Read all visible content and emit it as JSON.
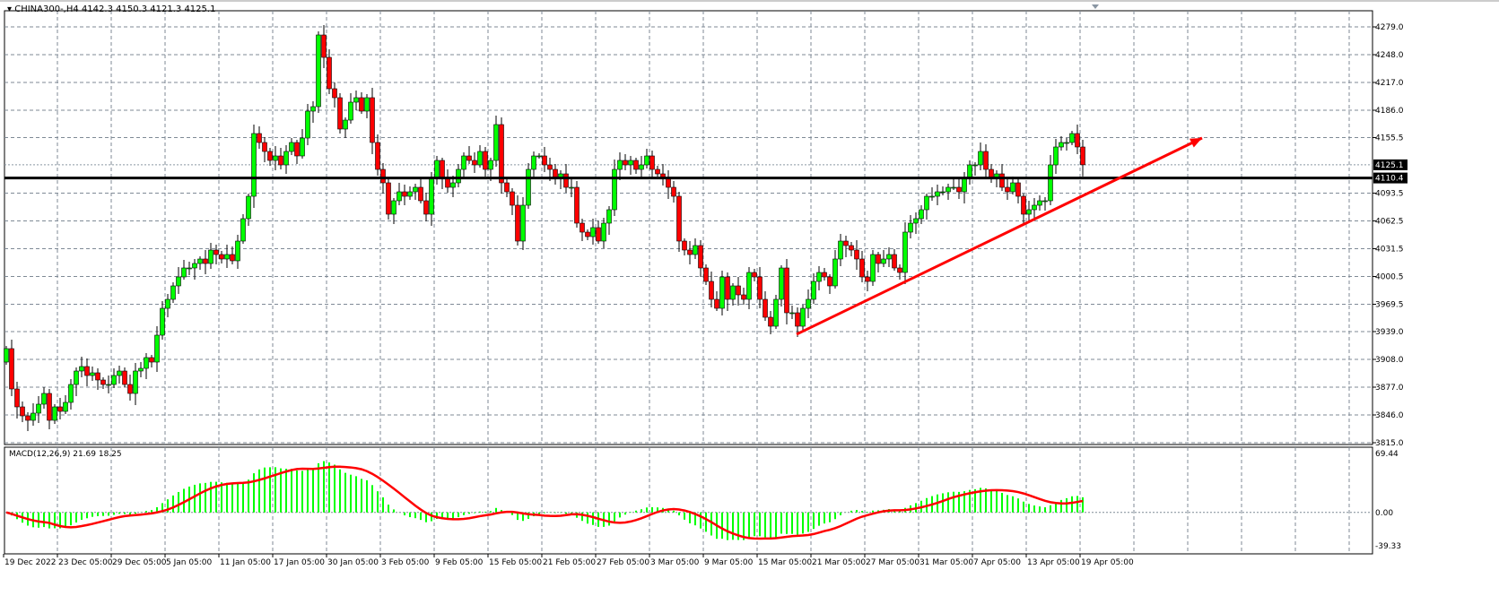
{
  "header": {
    "symbol": "CHINA300-,H4",
    "ohlc": "4142.3 4150.3 4121.3 4125.1"
  },
  "indicator": {
    "label": "MACD(12,26,9) 21.69 18.25"
  },
  "colors": {
    "bull": "#00ff00",
    "bear": "#ff0000",
    "macd_hist": "#00ff00",
    "signal": "#ff0000",
    "trend_arrow": "#ff0000",
    "level_line": "#000000",
    "grid": "#7f8a96"
  },
  "chart_data": {
    "type": "candlestick",
    "timeframe": "H4",
    "price_axis": {
      "ticks": [
        "4279.0",
        "4248.0",
        "4217.0",
        "4186.0",
        "4155.5",
        "4093.5",
        "4062.5",
        "4031.5",
        "4000.5",
        "3969.5",
        "3939.0",
        "3908.0",
        "3877.0",
        "3846.0",
        "3815.0"
      ],
      "ylim": [
        3815.0,
        4291.0
      ]
    },
    "current_price": {
      "value": 4125.1,
      "label": "4125.1"
    },
    "horizontal_level": {
      "value": 4110.4,
      "label": "4110.4"
    },
    "trend_arrow": {
      "from": {
        "candle": 147,
        "price": 3936
      },
      "to": {
        "candle": 222,
        "price": 4155
      }
    },
    "time_axis": {
      "labels": [
        "19 Dec 2022",
        "23 Dec 05:00",
        "29 Dec 05:00",
        "5 Jan 05:00",
        "11 Jan 05:00",
        "17 Jan 05:00",
        "30 Jan 05:00",
        "3 Feb 05:00",
        "9 Feb 05:00",
        "15 Feb 05:00",
        "21 Feb 05:00",
        "27 Feb 05:00",
        "3 Mar 05:00",
        "9 Mar 05:00",
        "15 Mar 05:00",
        "21 Mar 05:00",
        "27 Mar 05:00",
        "31 Mar 05:00",
        "7 Apr 05:00",
        "13 Apr 05:00",
        "19 Apr 05:00"
      ],
      "candles_per_label": 10
    },
    "first_open": 3905,
    "closes": [
      3920,
      3875,
      3855,
      3845,
      3840,
      3848,
      3858,
      3870,
      3840,
      3855,
      3850,
      3860,
      3880,
      3895,
      3900,
      3890,
      3893,
      3885,
      3880,
      3880,
      3890,
      3895,
      3880,
      3870,
      3895,
      3898,
      3910,
      3905,
      3935,
      3965,
      3975,
      3990,
      4000,
      4010,
      4010,
      4015,
      4020,
      4015,
      4030,
      4025,
      4020,
      4025,
      4018,
      4040,
      4065,
      4090,
      4160,
      4150,
      4140,
      4130,
      4135,
      4125,
      4140,
      4150,
      4135,
      4155,
      4185,
      4190,
      4270,
      4245,
      4210,
      4200,
      4165,
      4175,
      4195,
      4200,
      4185,
      4200,
      4150,
      4120,
      4105,
      4070,
      4085,
      4095,
      4090,
      4095,
      4100,
      4085,
      4070,
      4110,
      4130,
      4110,
      4100,
      4105,
      4120,
      4135,
      4130,
      4125,
      4140,
      4120,
      4130,
      4170,
      4105,
      4095,
      4080,
      4040,
      4080,
      4120,
      4135,
      4135,
      4125,
      4120,
      4110,
      4115,
      4100,
      4100,
      4060,
      4050,
      4045,
      4055,
      4040,
      4060,
      4075,
      4120,
      4130,
      4125,
      4130,
      4120,
      4125,
      4135,
      4120,
      4115,
      4110,
      4100,
      4090,
      4040,
      4030,
      4025,
      4035,
      4010,
      3995,
      3975,
      3965,
      4000,
      3975,
      3990,
      3980,
      3975,
      4005,
      4000,
      3975,
      3955,
      3945,
      3975,
      4010,
      3960,
      3960,
      3945,
      3965,
      3975,
      3995,
      4005,
      4000,
      3990,
      4020,
      4040,
      4035,
      4030,
      4020,
      4000,
      3995,
      4025,
      4015,
      4020,
      4025,
      4010,
      4005,
      4050,
      4060,
      4065,
      4075,
      4090,
      4090,
      4095,
      4095,
      4100,
      4100,
      4095,
      4110,
      4125,
      4125,
      4140,
      4120,
      4110,
      4115,
      4100,
      4095,
      4105,
      4090,
      4070,
      4075,
      4080,
      4085,
      4085,
      4125,
      4145,
      4150,
      4150,
      4160,
      4145,
      4125.1
    ],
    "macd": {
      "params": [
        12,
        26,
        9
      ],
      "main": 21.69,
      "signal": 18.25,
      "axis_ticks": [
        "69.44",
        "0.00",
        "-39.33"
      ],
      "ylim": [
        -39.33,
        69.44
      ]
    }
  }
}
